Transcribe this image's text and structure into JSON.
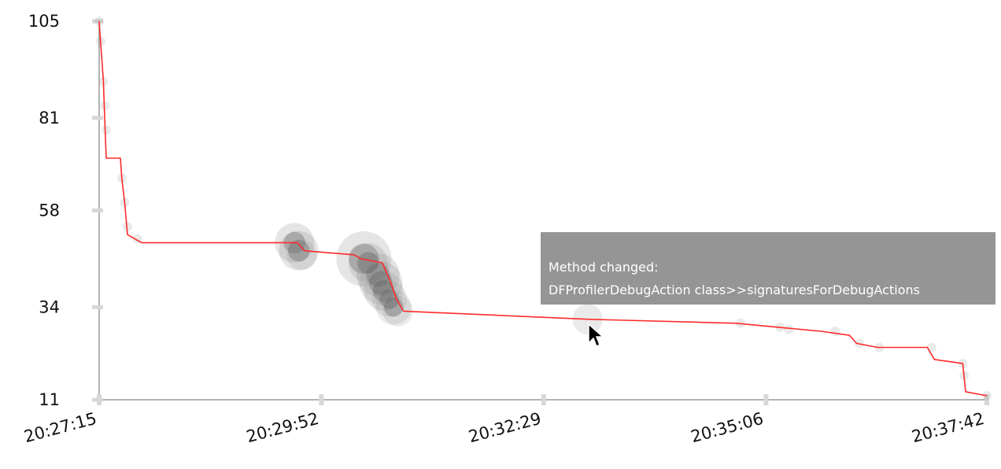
{
  "chart_data": {
    "type": "line",
    "title": "",
    "xlabel": "",
    "ylabel": "",
    "y_ticks": [
      11,
      34,
      58,
      81,
      105
    ],
    "y_tick_labels": [
      "11",
      "34",
      "58",
      "81",
      "105"
    ],
    "ylim": [
      11,
      105
    ],
    "x_tick_labels": [
      "20:27:15",
      "20:29:52",
      "20:32:29",
      "20:35:06",
      "20:37:42"
    ],
    "xlim": [
      "20:27:15",
      "20:37:42"
    ],
    "grid": false,
    "line_color": "#ff2a2a",
    "marker_color": "#555555",
    "series": [
      {
        "points": [
          {
            "x": "20:27:15",
            "y": 105
          },
          {
            "x": "20:27:16",
            "y": 100
          },
          {
            "x": "20:27:18",
            "y": 90
          },
          {
            "x": "20:27:19",
            "y": 80
          },
          {
            "x": "20:27:20",
            "y": 71
          },
          {
            "x": "20:27:30",
            "y": 71
          },
          {
            "x": "20:27:31",
            "y": 66
          },
          {
            "x": "20:27:33",
            "y": 60
          },
          {
            "x": "20:27:35",
            "y": 52
          },
          {
            "x": "20:27:40",
            "y": 51
          },
          {
            "x": "20:27:45",
            "y": 50
          },
          {
            "x": "20:29:35",
            "y": 50
          },
          {
            "x": "20:29:40",
            "y": 48
          },
          {
            "x": "20:30:15",
            "y": 47
          },
          {
            "x": "20:30:20",
            "y": 46
          },
          {
            "x": "20:30:35",
            "y": 45
          },
          {
            "x": "20:30:40",
            "y": 41
          },
          {
            "x": "20:30:45",
            "y": 36
          },
          {
            "x": "20:30:50",
            "y": 33
          },
          {
            "x": "20:33:00",
            "y": 31
          },
          {
            "x": "20:34:45",
            "y": 30
          },
          {
            "x": "20:35:15",
            "y": 29
          },
          {
            "x": "20:35:45",
            "y": 28
          },
          {
            "x": "20:36:05",
            "y": 27
          },
          {
            "x": "20:36:10",
            "y": 25
          },
          {
            "x": "20:36:25",
            "y": 24
          },
          {
            "x": "20:37:00",
            "y": 24
          },
          {
            "x": "20:37:05",
            "y": 21
          },
          {
            "x": "20:37:25",
            "y": 20
          },
          {
            "x": "20:37:27",
            "y": 13
          },
          {
            "x": "20:37:42",
            "y": 12
          }
        ]
      }
    ],
    "markers": [
      {
        "x": "20:27:15",
        "y": 105,
        "weight": 1
      },
      {
        "x": "20:27:16",
        "y": 100,
        "weight": 1
      },
      {
        "x": "20:27:18",
        "y": 90,
        "weight": 1
      },
      {
        "x": "20:27:19",
        "y": 84,
        "weight": 1
      },
      {
        "x": "20:27:20",
        "y": 78,
        "weight": 1
      },
      {
        "x": "20:27:31",
        "y": 66,
        "weight": 1
      },
      {
        "x": "20:27:33",
        "y": 60,
        "weight": 1
      },
      {
        "x": "20:27:35",
        "y": 54,
        "weight": 1
      },
      {
        "x": "20:27:42",
        "y": 51,
        "weight": 1
      },
      {
        "x": "20:29:33",
        "y": 50,
        "weight": 4
      },
      {
        "x": "20:29:36",
        "y": 48,
        "weight": 4
      },
      {
        "x": "20:29:38",
        "y": 47,
        "weight": 2
      },
      {
        "x": "20:30:22",
        "y": 46,
        "weight": 9
      },
      {
        "x": "20:30:25",
        "y": 45,
        "weight": 4
      },
      {
        "x": "20:30:32",
        "y": 42,
        "weight": 5
      },
      {
        "x": "20:30:34",
        "y": 40,
        "weight": 5
      },
      {
        "x": "20:30:36",
        "y": 38,
        "weight": 4
      },
      {
        "x": "20:30:40",
        "y": 36,
        "weight": 3
      },
      {
        "x": "20:30:43",
        "y": 34,
        "weight": 3
      },
      {
        "x": "20:30:46",
        "y": 33,
        "weight": 2
      },
      {
        "x": "20:33:00",
        "y": 31,
        "weight": 2
      },
      {
        "x": "20:34:48",
        "y": 30,
        "weight": 1
      },
      {
        "x": "20:35:16",
        "y": 29,
        "weight": 1
      },
      {
        "x": "20:35:22",
        "y": 28.5,
        "weight": 1
      },
      {
        "x": "20:35:55",
        "y": 28,
        "weight": 1
      },
      {
        "x": "20:36:12",
        "y": 25,
        "weight": 1
      },
      {
        "x": "20:36:26",
        "y": 24,
        "weight": 1
      },
      {
        "x": "20:37:03",
        "y": 24,
        "weight": 1
      },
      {
        "x": "20:37:25",
        "y": 20,
        "weight": 1
      },
      {
        "x": "20:37:26",
        "y": 17,
        "weight": 1
      },
      {
        "x": "20:37:42",
        "y": 12,
        "weight": 1
      }
    ]
  },
  "tooltip": {
    "line1": "Method changed:",
    "line2": "DFProfilerDebugAction class>>signaturesForDebugActions"
  }
}
